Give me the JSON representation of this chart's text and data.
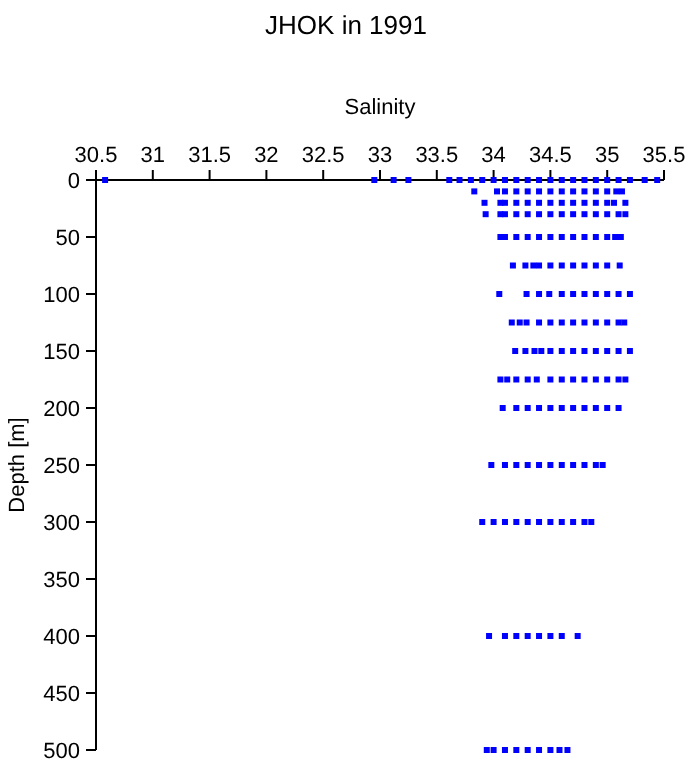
{
  "chart_data": {
    "type": "scatter",
    "title": "JHOK in 1991",
    "xlabel": "Salinity",
    "ylabel": "Depth [m]",
    "xlim": [
      30.5,
      35.5
    ],
    "xticks": [
      30.5,
      31,
      31.5,
      32,
      32.5,
      33,
      33.5,
      34,
      34.5,
      35,
      35.5
    ],
    "ylim": [
      500,
      0
    ],
    "yticks": [
      0,
      50,
      100,
      150,
      200,
      250,
      300,
      350,
      400,
      450,
      500
    ],
    "marker": "square",
    "series": [
      {
        "color": "#0000ff",
        "x": [
          30.58,
          32.95,
          33.12,
          33.25,
          33.61,
          33.7,
          33.8,
          33.9,
          34.0,
          34.1,
          34.2,
          34.3,
          34.4,
          34.5,
          34.6,
          34.7,
          34.8,
          34.9,
          35.0,
          35.1,
          35.2,
          35.33,
          35.44
        ],
        "values": [
          0,
          0,
          0,
          0,
          0,
          0,
          0,
          0,
          0,
          0,
          0,
          0,
          0,
          0,
          0,
          0,
          0,
          0,
          0,
          0,
          0,
          0,
          0
        ]
      },
      {
        "color": "#0000ff",
        "x": [
          33.83,
          34.03,
          34.1,
          34.2,
          34.3,
          34.4,
          34.5,
          34.6,
          34.7,
          34.8,
          34.9,
          35.0,
          35.08,
          35.13
        ],
        "values": [
          10,
          10,
          10,
          10,
          10,
          10,
          10,
          10,
          10,
          10,
          10,
          10,
          10,
          10
        ]
      },
      {
        "color": "#0000ff",
        "x": [
          33.92,
          34.06,
          34.1,
          34.2,
          34.3,
          34.4,
          34.5,
          34.6,
          34.7,
          34.8,
          34.9,
          35.0,
          35.06,
          35.16
        ],
        "values": [
          20,
          20,
          20,
          20,
          20,
          20,
          20,
          20,
          20,
          20,
          20,
          20,
          20,
          20
        ]
      },
      {
        "color": "#0000ff",
        "x": [
          33.93,
          34.06,
          34.1,
          34.2,
          34.3,
          34.4,
          34.5,
          34.6,
          34.7,
          34.8,
          34.9,
          35.0,
          35.1,
          35.16
        ],
        "values": [
          30,
          30,
          30,
          30,
          30,
          30,
          30,
          30,
          30,
          30,
          30,
          30,
          30,
          30
        ]
      },
      {
        "color": "#0000ff",
        "x": [
          34.06,
          34.1,
          34.2,
          34.3,
          34.4,
          34.5,
          34.6,
          34.7,
          34.8,
          34.9,
          35.0,
          35.07,
          35.12
        ],
        "values": [
          50,
          50,
          50,
          50,
          50,
          50,
          50,
          50,
          50,
          50,
          50,
          50,
          50
        ]
      },
      {
        "color": "#0000ff",
        "x": [
          34.17,
          34.28,
          34.35,
          34.4,
          34.5,
          34.6,
          34.7,
          34.8,
          34.9,
          35.0,
          35.11
        ],
        "values": [
          75,
          75,
          75,
          75,
          75,
          75,
          75,
          75,
          75,
          75,
          75
        ]
      },
      {
        "color": "#0000ff",
        "x": [
          34.05,
          34.29,
          34.4,
          34.49,
          34.6,
          34.7,
          34.8,
          34.9,
          35.0,
          35.1,
          35.2
        ],
        "values": [
          100,
          100,
          100,
          100,
          100,
          100,
          100,
          100,
          100,
          100,
          100
        ]
      },
      {
        "color": "#0000ff",
        "x": [
          34.16,
          34.23,
          34.29,
          34.4,
          34.5,
          34.6,
          34.7,
          34.8,
          34.9,
          35.0,
          35.1,
          35.15
        ],
        "values": [
          125,
          125,
          125,
          125,
          125,
          125,
          125,
          125,
          125,
          125,
          125,
          125
        ]
      },
      {
        "color": "#0000ff",
        "x": [
          34.19,
          34.28,
          34.36,
          34.42,
          34.5,
          34.6,
          34.7,
          34.8,
          34.9,
          35.0,
          35.1,
          35.2
        ],
        "values": [
          150,
          150,
          150,
          150,
          150,
          150,
          150,
          150,
          150,
          150,
          150,
          150
        ]
      },
      {
        "color": "#0000ff",
        "x": [
          34.06,
          34.12,
          34.2,
          34.3,
          34.38,
          34.5,
          34.6,
          34.7,
          34.8,
          34.9,
          35.0,
          35.1,
          35.16
        ],
        "values": [
          175,
          175,
          175,
          175,
          175,
          175,
          175,
          175,
          175,
          175,
          175,
          175,
          175
        ]
      },
      {
        "color": "#0000ff",
        "x": [
          34.08,
          34.2,
          34.3,
          34.4,
          34.5,
          34.6,
          34.7,
          34.8,
          34.9,
          35.0,
          35.1
        ],
        "values": [
          200,
          200,
          200,
          200,
          200,
          200,
          200,
          200,
          200,
          200,
          200
        ]
      },
      {
        "color": "#0000ff",
        "x": [
          33.98,
          34.1,
          34.2,
          34.3,
          34.4,
          34.5,
          34.6,
          34.7,
          34.8,
          34.9,
          34.96
        ],
        "values": [
          250,
          250,
          250,
          250,
          250,
          250,
          250,
          250,
          250,
          250,
          250
        ]
      },
      {
        "color": "#0000ff",
        "x": [
          33.9,
          34.0,
          34.1,
          34.2,
          34.3,
          34.4,
          34.5,
          34.6,
          34.7,
          34.8,
          34.86
        ],
        "values": [
          300,
          300,
          300,
          300,
          300,
          300,
          300,
          300,
          300,
          300,
          300
        ]
      },
      {
        "color": "#0000ff",
        "x": [
          33.96,
          34.1,
          34.2,
          34.3,
          34.4,
          34.5,
          34.6,
          34.74
        ],
        "values": [
          400,
          400,
          400,
          400,
          400,
          400,
          400,
          400
        ]
      },
      {
        "color": "#0000ff",
        "x": [
          33.94,
          34.0,
          34.1,
          34.2,
          34.3,
          34.4,
          34.5,
          34.58,
          34.65
        ],
        "values": [
          500,
          500,
          500,
          500,
          500,
          500,
          500,
          500,
          500
        ]
      }
    ]
  }
}
